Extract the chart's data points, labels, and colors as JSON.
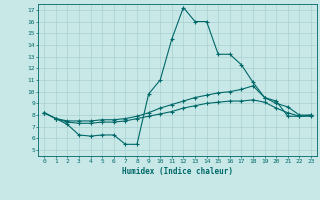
{
  "xlabel": "Humidex (Indice chaleur)",
  "bg_color": "#c8e8e8",
  "grid_color": "#a8d0d0",
  "line_color": "#006868",
  "xlim": [
    -0.5,
    23.5
  ],
  "ylim": [
    4.5,
    17.5
  ],
  "line1_x": [
    0,
    1,
    2,
    3,
    4,
    5,
    6,
    7,
    8,
    9,
    10,
    11,
    12,
    13,
    14,
    15,
    16,
    17,
    18,
    19,
    20,
    21,
    22,
    23
  ],
  "line1_y": [
    8.2,
    7.7,
    7.2,
    6.3,
    6.2,
    6.3,
    6.3,
    5.5,
    5.5,
    9.8,
    11.0,
    14.5,
    17.2,
    16.0,
    16.0,
    13.2,
    13.2,
    12.3,
    10.8,
    9.5,
    9.2,
    7.9,
    7.9,
    8.0
  ],
  "line2_x": [
    0,
    1,
    2,
    3,
    4,
    5,
    6,
    7,
    8,
    9,
    10,
    11,
    12,
    13,
    14,
    15,
    16,
    17,
    18,
    19,
    20,
    21,
    22,
    23
  ],
  "line2_y": [
    8.2,
    7.7,
    7.5,
    7.5,
    7.5,
    7.6,
    7.6,
    7.7,
    7.9,
    8.2,
    8.6,
    8.9,
    9.2,
    9.5,
    9.7,
    9.9,
    10.0,
    10.2,
    10.5,
    9.5,
    9.0,
    8.7,
    8.0,
    8.0
  ],
  "line3_x": [
    0,
    1,
    2,
    3,
    4,
    5,
    6,
    7,
    8,
    9,
    10,
    11,
    12,
    13,
    14,
    15,
    16,
    17,
    18,
    19,
    20,
    21,
    22,
    23
  ],
  "line3_y": [
    8.2,
    7.7,
    7.4,
    7.3,
    7.3,
    7.4,
    7.4,
    7.5,
    7.7,
    7.9,
    8.1,
    8.3,
    8.6,
    8.8,
    9.0,
    9.1,
    9.2,
    9.2,
    9.3,
    9.1,
    8.6,
    8.2,
    7.9,
    7.9
  ]
}
